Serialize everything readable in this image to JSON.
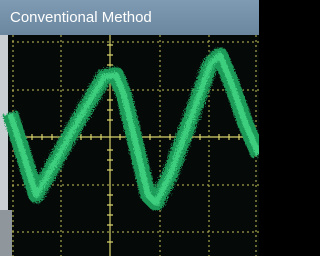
{
  "header": {
    "title": "Conventional Method"
  }
}
